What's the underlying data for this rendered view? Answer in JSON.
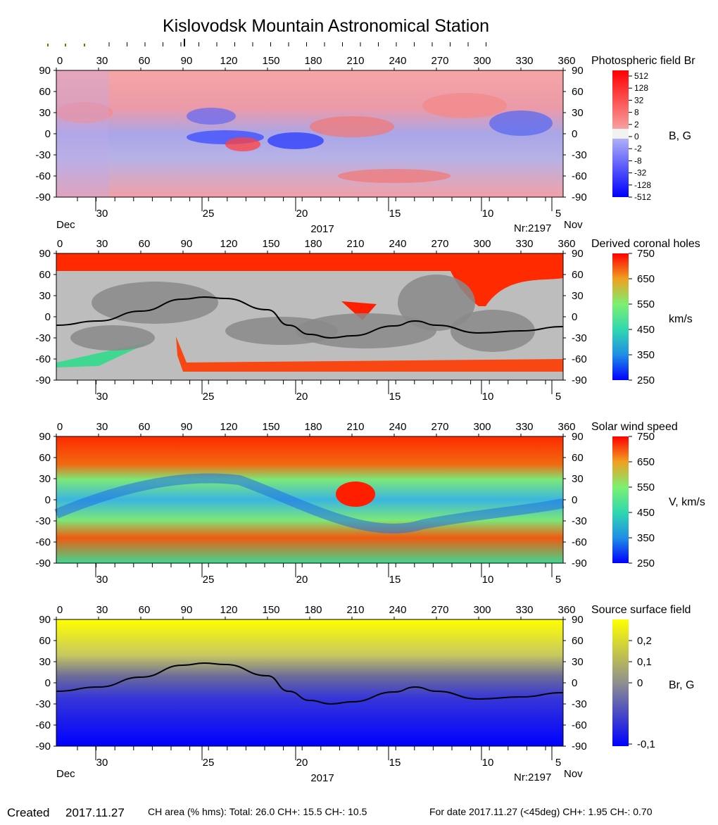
{
  "title": "Kislovodsk Mountain Astronomical Station",
  "footer": {
    "created_label": "Created",
    "created_date": "2017.11.27",
    "ch_area": "CH area (% hms): Total: 26.0 CH+: 15.5   CH-: 10.5",
    "for_date": "For date 2017.11.27 (<45deg) CH+: 1.95    CH-: 0.70"
  },
  "chart_data": [
    {
      "type": "heatmap",
      "panel": "photospheric",
      "title": "Photospheric field Br",
      "unit_label": "B, G",
      "x_longitude_ticks": [
        "0",
        "30",
        "60",
        "90",
        "120",
        "150",
        "180",
        "210",
        "240",
        "270",
        "300",
        "330",
        "360"
      ],
      "y_latitude_ticks": [
        "90",
        "60",
        "30",
        "0",
        "-30",
        "-60",
        "-90"
      ],
      "xlim": [
        0,
        360
      ],
      "ylim": [
        -90,
        90
      ],
      "date_ticks": [
        "30",
        "25",
        "20",
        "15",
        "10",
        "5"
      ],
      "date_month_left": "Dec",
      "date_month_right": "Nov",
      "year": "2017",
      "rotation": "Nr:2197",
      "colorbar_labels": [
        "512",
        "128",
        "32",
        "8",
        "2",
        "0",
        "-2",
        "-8",
        "-32",
        "-128",
        "-512"
      ],
      "colors": {
        "positive": "#ff3b3b",
        "negative": "#3b4bff",
        "zero": "#f2f2f2"
      }
    },
    {
      "type": "heatmap",
      "panel": "coronal_holes",
      "title": "Derived coronal holes",
      "unit_label": "km/s",
      "x_longitude_ticks": [
        "0",
        "30",
        "60",
        "90",
        "120",
        "150",
        "180",
        "210",
        "240",
        "270",
        "300",
        "330",
        "360"
      ],
      "y_latitude_ticks": [
        "90",
        "60",
        "30",
        "0",
        "-30",
        "-60",
        "-90"
      ],
      "xlim": [
        0,
        360
      ],
      "ylim": [
        -90,
        90
      ],
      "date_ticks": [
        "30",
        "25",
        "20",
        "15",
        "10",
        "5"
      ],
      "colorbar_labels": [
        "750",
        "650",
        "550",
        "450",
        "350",
        "250"
      ],
      "colorbar_range": [
        250,
        750
      ],
      "neutral_line": {
        "x": [
          0,
          30,
          60,
          90,
          105,
          120,
          150,
          165,
          180,
          195,
          210,
          240,
          255,
          270,
          300,
          330,
          360
        ],
        "y": [
          -12,
          -6,
          8,
          25,
          28,
          26,
          10,
          -12,
          -25,
          -30,
          -27,
          -13,
          -6,
          -12,
          -23,
          -20,
          -14
        ]
      },
      "colors": {
        "background": "#bdbdbd",
        "shade": "#8a8a8a",
        "hole": "#ff2a00"
      }
    },
    {
      "type": "heatmap",
      "panel": "solar_wind",
      "title": "Solar wind speed",
      "unit_label": "V, km/s",
      "x_longitude_ticks": [
        "0",
        "30",
        "60",
        "90",
        "120",
        "150",
        "180",
        "210",
        "240",
        "270",
        "300",
        "330",
        "360"
      ],
      "y_latitude_ticks": [
        "90",
        "60",
        "30",
        "0",
        "-30",
        "-60",
        "-90"
      ],
      "xlim": [
        0,
        360
      ],
      "ylim": [
        -90,
        90
      ],
      "date_ticks": [
        "30",
        "25",
        "20",
        "15",
        "10",
        "5"
      ],
      "colorbar_labels": [
        "750",
        "650",
        "550",
        "450",
        "350",
        "250"
      ],
      "colorbar_range": [
        250,
        750
      ]
    },
    {
      "type": "heatmap",
      "panel": "source_surface",
      "title": "Source surface field",
      "unit_label": "Br, G",
      "x_longitude_ticks": [
        "0",
        "30",
        "60",
        "90",
        "120",
        "150",
        "180",
        "210",
        "240",
        "270",
        "300",
        "330",
        "360"
      ],
      "y_latitude_ticks": [
        "90",
        "60",
        "30",
        "0",
        "-30",
        "-60",
        "-90"
      ],
      "xlim": [
        0,
        360
      ],
      "ylim": [
        -90,
        90
      ],
      "date_ticks": [
        "30",
        "25",
        "20",
        "15",
        "10",
        "5"
      ],
      "date_month_left": "Dec",
      "date_month_right": "Nov",
      "year": "2017",
      "rotation": "Nr:2197",
      "colorbar_labels": [
        "0,2",
        "0,1",
        "0",
        "-0,1"
      ],
      "neutral_line": {
        "x": [
          0,
          30,
          60,
          90,
          105,
          120,
          150,
          165,
          180,
          195,
          210,
          240,
          255,
          270,
          300,
          330,
          360
        ],
        "y": [
          -12,
          -6,
          8,
          25,
          28,
          26,
          10,
          -12,
          -25,
          -30,
          -27,
          -13,
          -6,
          -12,
          -23,
          -20,
          -14
        ]
      },
      "colors": {
        "high": "#ffff00",
        "mid": "#7a7a8a",
        "low": "#0000ff"
      }
    }
  ]
}
